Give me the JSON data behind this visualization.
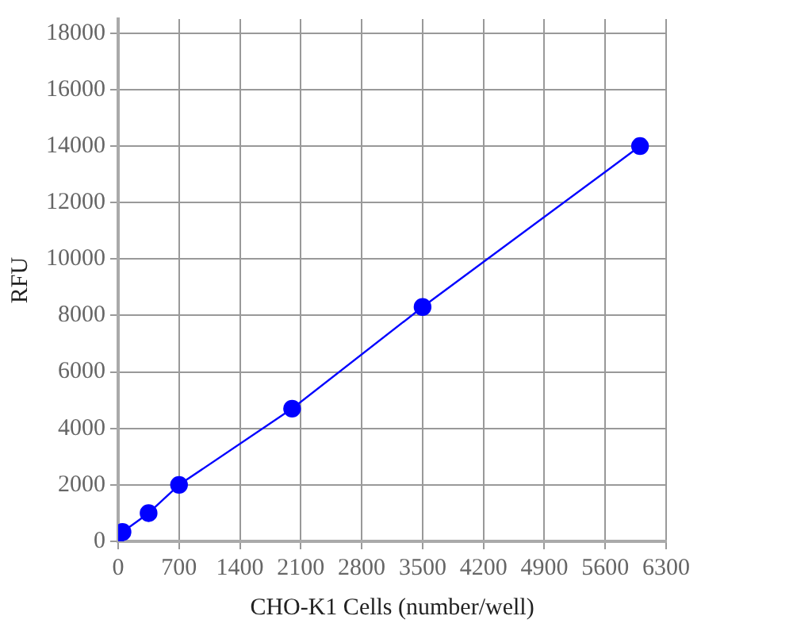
{
  "chart_data": {
    "type": "line",
    "xlabel": "CHO-K1 Cells (number/well)",
    "ylabel": "RFU",
    "x": [
      0,
      50,
      350,
      700,
      2000,
      3500,
      6000
    ],
    "series": [
      {
        "color": "#0000ff",
        "values": [
          250,
          330,
          1000,
          2000,
          4700,
          8300,
          14000
        ]
      }
    ],
    "xlim": [
      0,
      6300
    ],
    "xticks": [
      0,
      700,
      1400,
      2100,
      2800,
      3500,
      4200,
      4900,
      5600,
      6300
    ],
    "ylim": [
      0,
      18500
    ],
    "yticks": [
      0,
      2000,
      4000,
      6000,
      8000,
      10000,
      12000,
      14000,
      16000,
      18000
    ],
    "grid": true,
    "marker": "circle",
    "line_style": "solid",
    "legend": false
  }
}
